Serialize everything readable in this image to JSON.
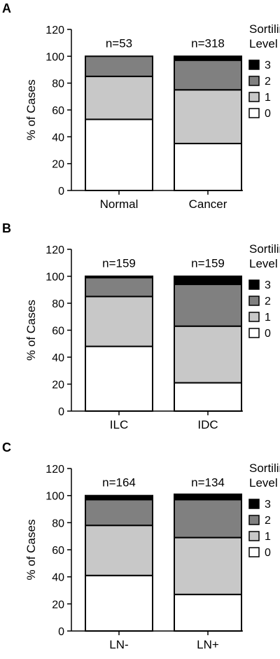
{
  "chart_data": [
    {
      "type": "bar",
      "stacked": true,
      "panel": "A",
      "categories": [
        "Normal",
        "Cancer"
      ],
      "n_labels": [
        "n=53",
        "n=318"
      ],
      "series": [
        {
          "name": "0",
          "values": [
            53,
            35
          ]
        },
        {
          "name": "1",
          "values": [
            32,
            40
          ]
        },
        {
          "name": "2",
          "values": [
            15,
            22
          ]
        },
        {
          "name": "3",
          "values": [
            0,
            3
          ]
        }
      ],
      "ylabel": "% of Cases",
      "xlabel": "",
      "ylim": [
        0,
        120
      ],
      "yticks": [
        "0",
        "20",
        "40",
        "60",
        "80",
        "100",
        "120"
      ],
      "legend_title": [
        "Sortilin",
        "Level"
      ],
      "legend_order": [
        "3",
        "2",
        "1",
        "0"
      ]
    },
    {
      "type": "bar",
      "stacked": true,
      "panel": "B",
      "categories": [
        "ILC",
        "IDC"
      ],
      "n_labels": [
        "n=159",
        "n=159"
      ],
      "series": [
        {
          "name": "0",
          "values": [
            48,
            21
          ]
        },
        {
          "name": "1",
          "values": [
            37,
            42
          ]
        },
        {
          "name": "2",
          "values": [
            14,
            31
          ]
        },
        {
          "name": "3",
          "values": [
            1,
            6
          ]
        }
      ],
      "ylabel": "% of Cases",
      "xlabel": "",
      "ylim": [
        0,
        120
      ],
      "yticks": [
        "0",
        "20",
        "40",
        "60",
        "80",
        "100",
        "120"
      ],
      "legend_title": [
        "Sortilin",
        "Level"
      ],
      "legend_order": [
        "3",
        "2",
        "1",
        "0"
      ]
    },
    {
      "type": "bar",
      "stacked": true,
      "panel": "C",
      "categories": [
        "LN-",
        "LN+"
      ],
      "n_labels": [
        "n=164",
        "n=134"
      ],
      "series": [
        {
          "name": "0",
          "values": [
            41,
            27
          ]
        },
        {
          "name": "1",
          "values": [
            37,
            42
          ]
        },
        {
          "name": "2",
          "values": [
            19,
            28
          ]
        },
        {
          "name": "3",
          "values": [
            3,
            4
          ]
        }
      ],
      "ylabel": "% of Cases",
      "xlabel": "",
      "ylim": [
        0,
        120
      ],
      "yticks": [
        "0",
        "20",
        "40",
        "60",
        "80",
        "100",
        "120"
      ],
      "legend_title": [
        "Sortilin",
        "Level"
      ],
      "legend_order": [
        "3",
        "2",
        "1",
        "0"
      ]
    }
  ],
  "colors": {
    "0": "#ffffff",
    "1": "#c8c8c8",
    "2": "#808080",
    "3": "#000000"
  }
}
